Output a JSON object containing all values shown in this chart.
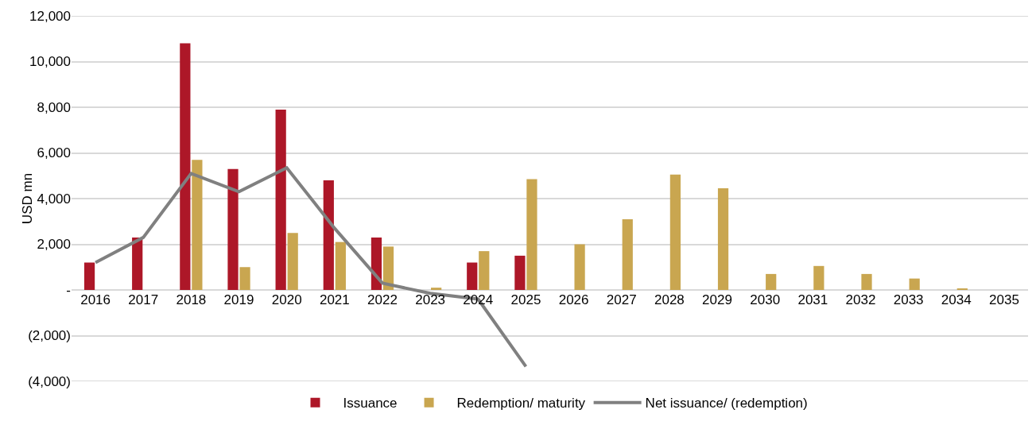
{
  "chart_data": {
    "type": "bar",
    "ylabel": "USD mn",
    "categories": [
      "2016",
      "2017",
      "2018",
      "2019",
      "2020",
      "2021",
      "2022",
      "2023",
      "2024",
      "2025",
      "2026",
      "2027",
      "2028",
      "2029",
      "2030",
      "2031",
      "2032",
      "2033",
      "2034",
      "2035"
    ],
    "series": [
      {
        "name": "Issuance",
        "color": "#ad1728",
        "values": [
          1200,
          2300,
          10800,
          5300,
          7900,
          4800,
          2300,
          null,
          1200,
          1500,
          null,
          null,
          null,
          null,
          null,
          null,
          null,
          null,
          null,
          null
        ]
      },
      {
        "name": "Redemption/ maturity",
        "color": "#c9a650",
        "values": [
          null,
          null,
          5700,
          1000,
          2500,
          2100,
          1900,
          100,
          1700,
          4850,
          2000,
          3100,
          5050,
          4450,
          700,
          1050,
          700,
          500,
          50,
          null
        ]
      },
      {
        "name": "Net issuance/ (redemption)",
        "type": "line",
        "color": "#808080",
        "values": [
          1200,
          2300,
          5100,
          4300,
          5350,
          2700,
          300,
          -150,
          -400,
          -3350,
          null,
          null,
          null,
          null,
          null,
          null,
          null,
          null,
          null,
          null
        ]
      }
    ],
    "ylim": [
      -4000,
      12000
    ],
    "yticks": [
      {
        "value": -4000,
        "label": "(4,000)"
      },
      {
        "value": -2000,
        "label": "(2,000)"
      },
      {
        "value": 0,
        "label": "-"
      },
      {
        "value": 2000,
        "label": "2,000"
      },
      {
        "value": 4000,
        "label": "4,000"
      },
      {
        "value": 6000,
        "label": "6,000"
      },
      {
        "value": 8000,
        "label": "8,000"
      },
      {
        "value": 10000,
        "label": "10,000"
      },
      {
        "value": 12000,
        "label": "12,000"
      }
    ],
    "grid": "y",
    "legend": "bottom",
    "marker": "none",
    "line_style": "solid"
  }
}
